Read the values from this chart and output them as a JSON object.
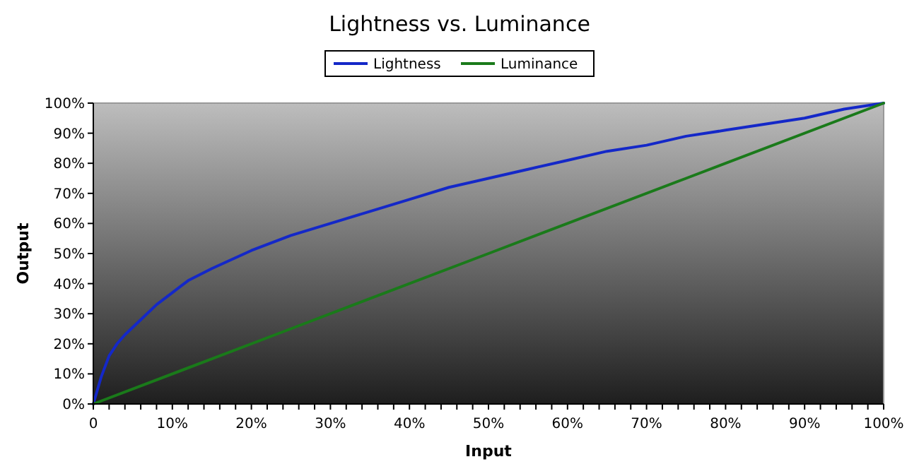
{
  "chart_data": {
    "type": "line",
    "title": "Lightness vs. Luminance",
    "xlabel": "Input",
    "ylabel": "Output",
    "xlim": [
      0,
      100
    ],
    "ylim": [
      0,
      100
    ],
    "xticks": [
      {
        "value": 0,
        "label": "0"
      },
      {
        "value": 10,
        "label": "10%"
      },
      {
        "value": 20,
        "label": "20%"
      },
      {
        "value": 30,
        "label": "30%"
      },
      {
        "value": 40,
        "label": "40%"
      },
      {
        "value": 50,
        "label": "50%"
      },
      {
        "value": 60,
        "label": "60%"
      },
      {
        "value": 70,
        "label": "70%"
      },
      {
        "value": 80,
        "label": "80%"
      },
      {
        "value": 90,
        "label": "90%"
      },
      {
        "value": 100,
        "label": "100%"
      }
    ],
    "yticks": [
      {
        "value": 0,
        "label": "0%"
      },
      {
        "value": 10,
        "label": "10%"
      },
      {
        "value": 20,
        "label": "20%"
      },
      {
        "value": 30,
        "label": "30%"
      },
      {
        "value": 40,
        "label": "40%"
      },
      {
        "value": 50,
        "label": "50%"
      },
      {
        "value": 60,
        "label": "60%"
      },
      {
        "value": 70,
        "label": "70%"
      },
      {
        "value": 80,
        "label": "80%"
      },
      {
        "value": 90,
        "label": "90%"
      },
      {
        "value": 100,
        "label": "100%"
      }
    ],
    "legend": "top",
    "grid": false,
    "marker": "none",
    "line_style": "solid",
    "series": [
      {
        "name": "Lightness",
        "color": "#1428c8",
        "x": [
          0,
          1,
          2,
          3,
          4,
          6,
          8,
          10,
          12,
          15,
          20,
          25,
          30,
          35,
          40,
          45,
          50,
          55,
          60,
          65,
          70,
          75,
          80,
          85,
          90,
          95,
          100
        ],
        "values": [
          0,
          9,
          16,
          20,
          23,
          28,
          33,
          37,
          41,
          45,
          51,
          56,
          60,
          64,
          68,
          72,
          75,
          78,
          81,
          84,
          86,
          89,
          91,
          93,
          95,
          98,
          100
        ]
      },
      {
        "name": "Luminance",
        "color": "#1a7a1a",
        "x": [
          0,
          25,
          50,
          75,
          100
        ],
        "values": [
          0,
          25,
          50,
          75,
          100
        ]
      }
    ]
  }
}
